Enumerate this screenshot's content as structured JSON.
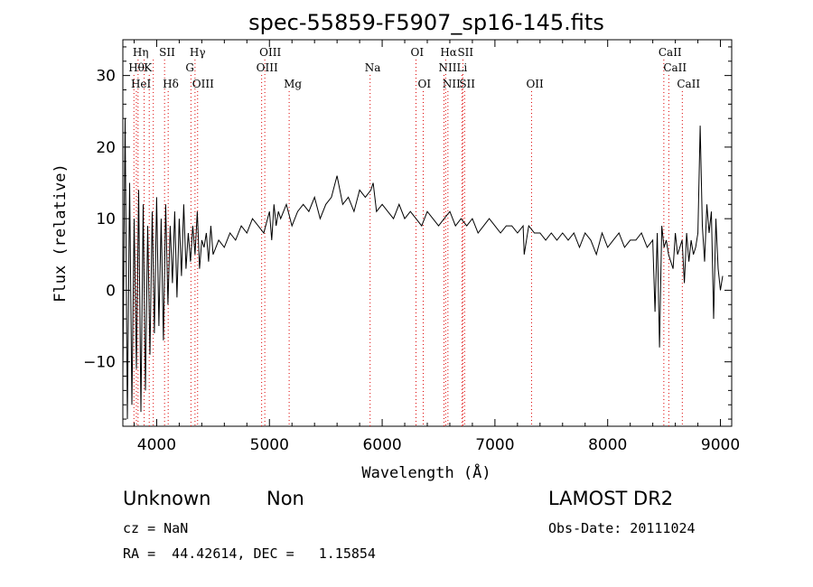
{
  "chart_data": {
    "type": "line",
    "title": "spec-55859-F5907_sp16-145.fits",
    "xlabel": "Wavelength (Å)",
    "ylabel": "Flux (relative)",
    "xlim": [
      3700,
      9100
    ],
    "ylim": [
      -19,
      35
    ],
    "x_ticks": [
      4000,
      5000,
      6000,
      7000,
      8000,
      9000
    ],
    "y_ticks": [
      -10,
      0,
      10,
      20,
      30
    ],
    "grid": false,
    "line_color": "#000000",
    "marker_color": "#dd0000",
    "series": [
      {
        "values_x": [
          3700,
          3720,
          3740,
          3760,
          3780,
          3800,
          3820,
          3840,
          3860,
          3880,
          3900,
          3920,
          3940,
          3960,
          3980,
          4000,
          4020,
          4040,
          4060,
          4080,
          4100,
          4120,
          4140,
          4160,
          4180,
          4200,
          4220,
          4240,
          4260,
          4280,
          4300,
          4320,
          4340,
          4360,
          4380,
          4400,
          4420,
          4440,
          4460,
          4480,
          4500,
          4550,
          4600,
          4650,
          4700,
          4750,
          4800,
          4850,
          4900,
          4950,
          5000,
          5020,
          5040,
          5060,
          5080,
          5100,
          5150,
          5200,
          5250,
          5300,
          5350,
          5400,
          5450,
          5500,
          5550,
          5600,
          5650,
          5700,
          5750,
          5800,
          5850,
          5900,
          5920,
          5950,
          6000,
          6050,
          6100,
          6150,
          6200,
          6250,
          6300,
          6350,
          6400,
          6450,
          6500,
          6550,
          6600,
          6650,
          6700,
          6750,
          6800,
          6850,
          6900,
          6950,
          7000,
          7050,
          7100,
          7150,
          7200,
          7250,
          7260,
          7300,
          7350,
          7400,
          7450,
          7500,
          7550,
          7600,
          7650,
          7700,
          7750,
          7800,
          7850,
          7900,
          7950,
          8000,
          8050,
          8100,
          8150,
          8200,
          8250,
          8300,
          8350,
          8400,
          8420,
          8440,
          8460,
          8480,
          8500,
          8520,
          8540,
          8560,
          8580,
          8600,
          8620,
          8640,
          8660,
          8680,
          8700,
          8720,
          8740,
          8760,
          8780,
          8800,
          8820,
          8840,
          8860,
          8880,
          8900,
          8920,
          8940,
          8960,
          8980,
          9000,
          9020
        ],
        "values_y": [
          -12,
          24,
          -18,
          15,
          -16,
          10,
          -11,
          14,
          -17,
          12,
          -14,
          9,
          -9,
          11,
          -6,
          13,
          -5,
          10,
          -7,
          12,
          -2,
          9,
          1,
          11,
          -1,
          10,
          2,
          12,
          3,
          8,
          4,
          9,
          5,
          11,
          3,
          7,
          6,
          8,
          4,
          9,
          5,
          7,
          6,
          8,
          7,
          9,
          8,
          10,
          9,
          8,
          11,
          7,
          12,
          9,
          11,
          10,
          12,
          9,
          11,
          12,
          11,
          13,
          10,
          12,
          13,
          16,
          12,
          13,
          11,
          14,
          13,
          14,
          15,
          11,
          12,
          11,
          10,
          12,
          10,
          11,
          10,
          9,
          11,
          10,
          9,
          10,
          11,
          9,
          10,
          9,
          10,
          8,
          9,
          10,
          9,
          8,
          9,
          9,
          8,
          9,
          5,
          9,
          8,
          8,
          7,
          8,
          7,
          8,
          7,
          8,
          6,
          8,
          7,
          5,
          8,
          6,
          7,
          8,
          6,
          7,
          7,
          8,
          6,
          7,
          -3,
          8,
          -8,
          9,
          6,
          7,
          5,
          4,
          3,
          8,
          5,
          6,
          7,
          1,
          8,
          4,
          7,
          5,
          6,
          8,
          23,
          9,
          4,
          12,
          8,
          11,
          -4,
          10,
          3,
          0,
          2
        ]
      }
    ],
    "line_markers": [
      {
        "x": 3835,
        "row": 0,
        "label": "Hη"
      },
      {
        "x": 3889,
        "row": 0,
        "label": ""
      },
      {
        "x": 3970,
        "row": 0,
        "label": ""
      },
      {
        "x": 4070,
        "row": 0,
        "label": "SII"
      },
      {
        "x": 4340,
        "row": 0,
        "label": "Hγ"
      },
      {
        "x": 4959,
        "row": 0,
        "label": "OIII"
      },
      {
        "x": 6300,
        "row": 0,
        "label": "OI"
      },
      {
        "x": 6563,
        "row": 0,
        "label": "Hα"
      },
      {
        "x": 6716,
        "row": 0,
        "label": "SII"
      },
      {
        "x": 8498,
        "row": 0,
        "label": "CaII"
      },
      {
        "x": 3798,
        "row": 1,
        "label": "Hθ"
      },
      {
        "x": 3934,
        "row": 1,
        "label": "K"
      },
      {
        "x": 4304,
        "row": 1,
        "label": "G"
      },
      {
        "x": 4931,
        "row": 1,
        "label": "OIII"
      },
      {
        "x": 5893,
        "row": 1,
        "label": "Na"
      },
      {
        "x": 6548,
        "row": 1,
        "label": "NII"
      },
      {
        "x": 6708,
        "row": 1,
        "label": "Li"
      },
      {
        "x": 8542,
        "row": 1,
        "label": "CaII"
      },
      {
        "x": 3820,
        "row": 2,
        "label": "HeI"
      },
      {
        "x": 4102,
        "row": 2,
        "label": "Hδ"
      },
      {
        "x": 4363,
        "row": 2,
        "label": "OIII"
      },
      {
        "x": 5175,
        "row": 2,
        "label": "Mg"
      },
      {
        "x": 6364,
        "row": 2,
        "label": "OI"
      },
      {
        "x": 6583,
        "row": 2,
        "label": "NII"
      },
      {
        "x": 6731,
        "row": 2,
        "label": "SII"
      },
      {
        "x": 7325,
        "row": 2,
        "label": "OII"
      },
      {
        "x": 8662,
        "row": 2,
        "label": "CaII"
      }
    ]
  },
  "info": {
    "class": "Unknown",
    "subclass": "Non",
    "survey": "LAMOST DR2",
    "cz": "cz = NaN",
    "obsdate": "Obs-Date: 20111024",
    "radec": "RA =  44.42614, DEC =   1.15854"
  }
}
